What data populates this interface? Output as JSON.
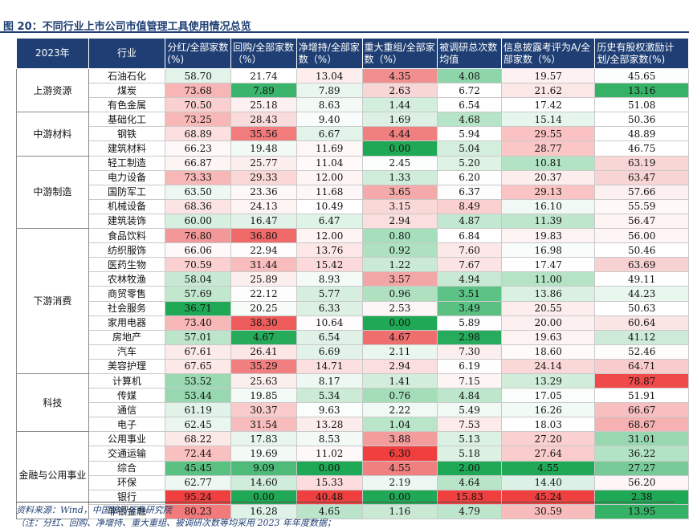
{
  "title": "图 20：不同行业上市公司市值管理工具使用情况总览",
  "headers": [
    "2023年",
    "行业",
    "分红/全部家数(%)",
    "回购/全部家数（%）",
    "净增持/全部家数（%）",
    "重大重组/全部家数（%）",
    "被调研总次数均值",
    "信息披露考评为A/全部家数（%）",
    "历史有股权激励计划/全部家数(%)"
  ],
  "groups": [
    {
      "name": "上游资源",
      "rows": [
        {
          "industry": "石油石化",
          "v": [
            "58.70",
            "21.74",
            "13.04",
            "4.35",
            "4.08",
            "19.57",
            "45.65"
          ],
          "c": [
            "#e2f4ea",
            "#ffffff",
            "#fdeded",
            "#f18f8f",
            "#8fd5aa",
            "#fdf1f1",
            "#fbfefc"
          ]
        },
        {
          "industry": "煤炭",
          "v": [
            "73.68",
            "7.89",
            "7.89",
            "2.63",
            "6.72",
            "21.62",
            "13.16"
          ],
          "c": [
            "#f7b5b5",
            "#3bb56d",
            "#e9f6ee",
            "#f8d6d6",
            "#ffffff",
            "#fce7e7",
            "#35b266"
          ]
        },
        {
          "industry": "有色金属",
          "v": [
            "70.50",
            "25.18",
            "8.63",
            "1.44",
            "6.54",
            "17.42",
            "51.08"
          ],
          "c": [
            "#fad0d0",
            "#fdf0f0",
            "#f3faf6",
            "#d4eedd",
            "#fefefe",
            "#ffffff",
            "#ffffff"
          ]
        }
      ]
    },
    {
      "name": "中游材料",
      "rows": [
        {
          "industry": "基础化工",
          "v": [
            "73.25",
            "28.43",
            "9.40",
            "1.69",
            "4.68",
            "15.14",
            "50.36"
          ],
          "c": [
            "#f8b8b8",
            "#fbdcdc",
            "#f8fcfa",
            "#dcf1e4",
            "#b6e4c7",
            "#e7f6ec",
            "#ffffff"
          ]
        },
        {
          "industry": "钢铁",
          "v": [
            "68.89",
            "35.56",
            "6.67",
            "4.44",
            "5.94",
            "29.55",
            "48.89"
          ],
          "c": [
            "#fcdfdf",
            "#f27b7b",
            "#e2f4e9",
            "#f07f7f",
            "#ffffff",
            "#fac2c2",
            "#ffffff"
          ]
        },
        {
          "industry": "建筑材料",
          "v": [
            "66.23",
            "19.48",
            "11.69",
            "0.00",
            "5.04",
            "28.77",
            "46.75"
          ],
          "c": [
            "#fef8f8",
            "#f2faf5",
            "#fff6f6",
            "#1fa855",
            "#d4eedd",
            "#fac6c6",
            "#ffffff"
          ]
        }
      ]
    },
    {
      "name": "中游制造",
      "rows": [
        {
          "industry": "轻工制造",
          "v": [
            "66.87",
            "25.77",
            "11.04",
            "2.45",
            "5.20",
            "10.81",
            "63.19"
          ],
          "c": [
            "#fdf4f4",
            "#fdeeee",
            "#fff9f9",
            "#fbfefc",
            "#dff2e6",
            "#b3e3c5",
            "#f8d6d6"
          ]
        },
        {
          "industry": "电力设备",
          "v": [
            "73.33",
            "29.33",
            "12.00",
            "1.33",
            "6.20",
            "20.37",
            "63.47"
          ],
          "c": [
            "#f8b8b8",
            "#fad6d6",
            "#fef4f4",
            "#d0ecda",
            "#fffefe",
            "#fdeeee",
            "#f8d4d4"
          ]
        },
        {
          "industry": "国防军工",
          "v": [
            "63.50",
            "23.36",
            "11.68",
            "3.65",
            "6.37",
            "29.13",
            "57.66"
          ],
          "c": [
            "#eef8f2",
            "#fef8f8",
            "#fff6f6",
            "#f4aaaa",
            "#fdfdfd",
            "#fbc4c4",
            "#fdf0f0"
          ]
        },
        {
          "industry": "机械设备",
          "v": [
            "68.36",
            "24.13",
            "10.49",
            "3.15",
            "8.49",
            "16.10",
            "55.59"
          ],
          "c": [
            "#fde4e4",
            "#fef4f4",
            "#fefffe",
            "#fbd8d8",
            "#fad0d0",
            "#f0f9f3",
            "#fef8f8"
          ]
        },
        {
          "industry": "建筑装饰",
          "v": [
            "60.00",
            "16.47",
            "6.47",
            "2.94",
            "4.87",
            "11.39",
            "56.47"
          ],
          "c": [
            "#d6efdf",
            "#e1f3e8",
            "#e0f3e7",
            "#fbdede",
            "#c3e8d1",
            "#bde6cc",
            "#fef4f4"
          ]
        }
      ]
    },
    {
      "name": "下游消费",
      "rows": [
        {
          "industry": "食品饮料",
          "v": [
            "76.80",
            "36.80",
            "12.00",
            "0.80",
            "6.84",
            "19.83",
            "56.00"
          ],
          "c": [
            "#f29898",
            "#f06a6a",
            "#fef4f4",
            "#a6dfbb",
            "#ffffff",
            "#fdf3f3",
            "#fef6f6"
          ]
        },
        {
          "industry": "纺织服饰",
          "v": [
            "66.06",
            "22.94",
            "13.76",
            "0.92",
            "7.60",
            "16.98",
            "50.46"
          ],
          "c": [
            "#fef8f8",
            "#fefcfc",
            "#fce6e6",
            "#ade1c0",
            "#fce8e8",
            "#f8fcfa",
            "#ffffff"
          ]
        },
        {
          "industry": "医药生物",
          "v": [
            "70.59",
            "31.44",
            "15.42",
            "1.22",
            "7.67",
            "17.47",
            "63.69"
          ],
          "c": [
            "#fad0d0",
            "#f8bcbc",
            "#fcdada",
            "#cbead6",
            "#fce4e4",
            "#ffffff",
            "#f8d2d2"
          ]
        },
        {
          "industry": "农林牧渔",
          "v": [
            "58.04",
            "25.89",
            "8.93",
            "3.57",
            "4.94",
            "11.00",
            "49.11"
          ],
          "c": [
            "#c7e9d3",
            "#fdeeee",
            "#f4fbf7",
            "#f3a6a6",
            "#c8e9d4",
            "#b4e3c5",
            "#ffffff"
          ]
        },
        {
          "industry": "商贸零售",
          "v": [
            "57.69",
            "22.12",
            "5.77",
            "0.96",
            "3.51",
            "13.86",
            "44.23"
          ],
          "c": [
            "#c2e7cf",
            "#fefdfd",
            "#d6eedf",
            "#afe1c1",
            "#5dc286",
            "#d9f0e2",
            "#e8f6ee"
          ]
        },
        {
          "industry": "社会服务",
          "v": [
            "36.71",
            "20.25",
            "6.33",
            "2.53",
            "3.49",
            "20.55",
            "50.63"
          ],
          "c": [
            "#1fa855",
            "#f8fcf9",
            "#dcf1e4",
            "#fdf6f6",
            "#5ac183",
            "#fdeded",
            "#ffffff"
          ]
        },
        {
          "industry": "家用电器",
          "v": [
            "73.40",
            "38.30",
            "10.64",
            "0.00",
            "5.89",
            "20.00",
            "60.64"
          ],
          "c": [
            "#f8b8b8",
            "#ef5c5c",
            "#fefcfc",
            "#1fa855",
            "#fdfefd",
            "#fdf0f0",
            "#fae4e4"
          ]
        },
        {
          "industry": "房地产",
          "v": [
            "57.01",
            "4.67",
            "6.54",
            "4.67",
            "2.98",
            "19.63",
            "41.12"
          ],
          "c": [
            "#bce5cb",
            "#26ab5b",
            "#e0f2e7",
            "#ef6e6e",
            "#27ab5c",
            "#fdf3f3",
            "#cdebd8"
          ]
        },
        {
          "industry": "汽车",
          "v": [
            "67.61",
            "26.41",
            "6.69",
            "2.11",
            "7.30",
            "18.60",
            "52.46"
          ],
          "c": [
            "#fdeaea",
            "#fce6e6",
            "#e2f4e9",
            "#eaf7ef",
            "#fbeeee",
            "#fefafa",
            "#fffcfc"
          ]
        },
        {
          "industry": "美容护理",
          "v": [
            "67.65",
            "35.29",
            "14.71",
            "2.94",
            "6.19",
            "24.14",
            "64.71"
          ],
          "c": [
            "#fde8e8",
            "#f27f7f",
            "#fce0e0",
            "#fbdede",
            "#fffefe",
            "#fbd8d8",
            "#f8cccc"
          ]
        }
      ]
    },
    {
      "name": "科技",
      "rows": [
        {
          "industry": "计算机",
          "v": [
            "53.52",
            "25.63",
            "8.17",
            "1.41",
            "7.15",
            "13.29",
            "78.87"
          ],
          "c": [
            "#9ad9b1",
            "#fdeeee",
            "#eef8f2",
            "#d3eddd",
            "#fdf4f4",
            "#d1edda",
            "#ef4b4b"
          ]
        },
        {
          "industry": "传媒",
          "v": [
            "53.44",
            "19.85",
            "5.34",
            "0.76",
            "4.84",
            "17.05",
            "51.91"
          ],
          "c": [
            "#98d8b0",
            "#f4fbf7",
            "#cbebd6",
            "#a4deb9",
            "#bee6cc",
            "#f9fdfb",
            "#ffffff"
          ]
        },
        {
          "industry": "通信",
          "v": [
            "61.19",
            "30.37",
            "9.63",
            "2.22",
            "5.49",
            "16.26",
            "66.67"
          ],
          "c": [
            "#e1f3e8",
            "#f9cbcb",
            "#f9fdfb",
            "#f0f9f3",
            "#f0f9f4",
            "#f1faf5",
            "#f7bfbf"
          ]
        },
        {
          "industry": "电子",
          "v": [
            "62.45",
            "31.54",
            "13.28",
            "1.04",
            "7.53",
            "18.03",
            "68.67"
          ],
          "c": [
            "#eaf7ef",
            "#f8bcbc",
            "#fdecec",
            "#b9e5c9",
            "#fdeaea",
            "#ffffff",
            "#f6b2b2"
          ]
        }
      ]
    },
    {
      "name": "金融与公用事业",
      "rows": [
        {
          "industry": "公用事业",
          "v": [
            "68.22",
            "17.83",
            "8.53",
            "3.88",
            "5.13",
            "27.20",
            "31.01"
          ],
          "c": [
            "#fde8e8",
            "#e7f5ec",
            "#f3faf6",
            "#f29c9c",
            "#dbf1e3",
            "#fad0d0",
            "#98d8b0"
          ]
        },
        {
          "industry": "交通运输",
          "v": [
            "72.44",
            "19.69",
            "11.02",
            "6.30",
            "5.18",
            "27.64",
            "36.22"
          ],
          "c": [
            "#f9c0c0",
            "#f3faf6",
            "#fff8f8",
            "#ef3f3f",
            "#dcf1e4",
            "#facccc",
            "#b3e3c5"
          ]
        },
        {
          "industry": "综合",
          "v": [
            "45.45",
            "9.09",
            "0.00",
            "4.55",
            "2.00",
            "4.55",
            "27.27"
          ],
          "c": [
            "#5bc183",
            "#4ebb79",
            "#1fa855",
            "#f07f7f",
            "#1fa855",
            "#1fa855",
            "#78cb99"
          ]
        },
        {
          "industry": "环保",
          "v": [
            "62.77",
            "14.60",
            "15.33",
            "2.19",
            "4.64",
            "14.40",
            "56.20"
          ],
          "c": [
            "#ecf8f1",
            "#d0ecda",
            "#fcdcdc",
            "#eef8f2",
            "#b8e4c8",
            "#dcf1e5",
            "#fef6f6"
          ]
        },
        {
          "industry": "银行",
          "v": [
            "95.24",
            "0.00",
            "40.48",
            "0.00",
            "15.83",
            "45.24",
            "2.38"
          ],
          "c": [
            "#ef3f3f",
            "#1fa855",
            "#ef3f3f",
            "#1fa855",
            "#ef3f3f",
            "#ef3f3f",
            "#1fa855"
          ]
        },
        {
          "industry": "非银金融",
          "v": [
            "80.23",
            "16.28",
            "4.65",
            "1.16",
            "4.79",
            "30.59",
            "13.95"
          ],
          "c": [
            "#f27a7a",
            "#dff2e7",
            "#bae5ca",
            "#c9e9d5",
            "#bde6cd",
            "#f9bcbc",
            "#35b266"
          ]
        }
      ]
    }
  ],
  "source": "资料来源：Wind，中国银河证券研究院",
  "note": "（注：分红、回购、净增持、重大重组、被调研次数等均采用 2023 年年度数据；"
}
